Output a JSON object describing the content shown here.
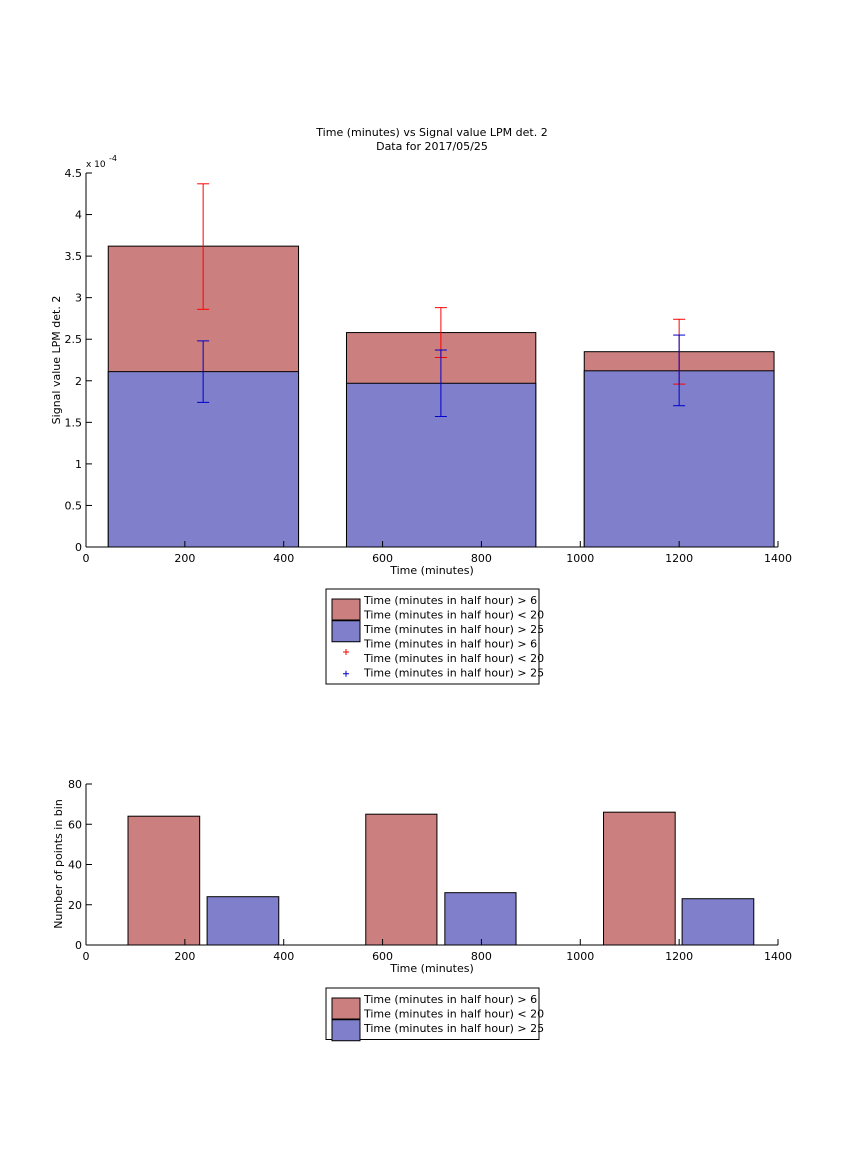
{
  "chart_data": [
    {
      "type": "bar",
      "title": "Time (minutes) vs Signal value LPM det. 2",
      "subtitle": "Data for 2017/05/25",
      "xlabel": "Time (minutes)",
      "ylabel": "Signal value LPM det. 2",
      "y_exponent": "x 10",
      "y_exponent_power": "-4",
      "xlim": [
        0,
        1400
      ],
      "ylim": [
        0,
        4.5
      ],
      "xticks": [
        0,
        200,
        400,
        600,
        800,
        1000,
        1200,
        1400
      ],
      "xtick_labels": [
        "0",
        "200",
        "400",
        "600",
        "800",
        "1000",
        "1200",
        "1400"
      ],
      "yticks": [
        0,
        0.5,
        1,
        1.5,
        2,
        2.5,
        3,
        3.5,
        4,
        4.5
      ],
      "ytick_labels": [
        "0",
        "0.5",
        "1",
        "1.5",
        "2",
        "2.5",
        "3",
        "3.5",
        "4",
        "4.5"
      ],
      "grid": false,
      "legend_position": "below",
      "bar_groups": [
        {
          "x_start": 45,
          "x_end": 430
        },
        {
          "x_start": 527,
          "x_end": 910
        },
        {
          "x_start": 1008,
          "x_end": 1392
        }
      ],
      "series": [
        {
          "name": "Time (minutes in half hour) > 6\nTime (minutes in half hour) < 20",
          "kind": "bar",
          "color": "#cc7f7f",
          "values": [
            3.62,
            2.58,
            2.35
          ]
        },
        {
          "name": "Time (minutes in half hour) > 25",
          "kind": "bar",
          "color": "#7f7fcc",
          "values": [
            2.11,
            1.97,
            2.12
          ]
        },
        {
          "name": "Time (minutes in half hour) > 6\nTime (minutes in half hour) < 20",
          "kind": "errorbar",
          "color": "#ff0000",
          "x": [
            237,
            718,
            1200
          ],
          "y": [
            3.62,
            2.58,
            2.35
          ],
          "lower": [
            2.86,
            2.28,
            1.96
          ],
          "upper": [
            4.37,
            2.88,
            2.74
          ]
        },
        {
          "name": "Time (minutes in half hour) > 25",
          "kind": "errorbar",
          "color": "#0000cc",
          "x": [
            237,
            718,
            1200
          ],
          "y": [
            2.11,
            1.97,
            2.12
          ],
          "lower": [
            1.74,
            1.57,
            1.7
          ],
          "upper": [
            2.48,
            2.37,
            2.55
          ]
        }
      ]
    },
    {
      "type": "bar",
      "xlabel": "Time (minutes)",
      "ylabel": "Number of points in bin",
      "xlim": [
        0,
        1400
      ],
      "ylim": [
        0,
        80
      ],
      "xticks": [
        0,
        200,
        400,
        600,
        800,
        1000,
        1200,
        1400
      ],
      "xtick_labels": [
        "0",
        "200",
        "400",
        "600",
        "800",
        "1000",
        "1200",
        "1400"
      ],
      "yticks": [
        0,
        20,
        40,
        60,
        80
      ],
      "ytick_labels": [
        "0",
        "20",
        "40",
        "60",
        "80"
      ],
      "grid": false,
      "legend_position": "below",
      "series": [
        {
          "name": "Time (minutes in half hour) > 6\nTime (minutes in half hour) < 20",
          "color": "#cc7f7f",
          "x_start": [
            85,
            566,
            1047
          ],
          "x_end": [
            230,
            710,
            1192
          ],
          "values": [
            64,
            65,
            66
          ]
        },
        {
          "name": "Time (minutes in half hour) > 25",
          "color": "#7f7fcc",
          "x_start": [
            245,
            726,
            1206
          ],
          "x_end": [
            390,
            870,
            1351
          ],
          "values": [
            24,
            26,
            23
          ]
        }
      ]
    }
  ],
  "legends": [
    {
      "entries": [
        {
          "kind": "patch",
          "color": "#cc7f7f",
          "lines": [
            "Time (minutes in half hour) > 6",
            "Time (minutes in half hour) < 20"
          ]
        },
        {
          "kind": "patch",
          "color": "#7f7fcc",
          "lines": [
            "Time (minutes in half hour) > 25"
          ]
        },
        {
          "kind": "marker",
          "color": "#ff0000",
          "lines": [
            "Time (minutes in half hour) > 6",
            "Time (minutes in half hour) < 20"
          ]
        },
        {
          "kind": "marker",
          "color": "#0000cc",
          "lines": [
            "Time (minutes in half hour) > 25"
          ]
        }
      ]
    },
    {
      "entries": [
        {
          "kind": "patch",
          "color": "#cc7f7f",
          "lines": [
            "Time (minutes in half hour) > 6",
            "Time (minutes in half hour) < 20"
          ]
        },
        {
          "kind": "patch",
          "color": "#7f7fcc",
          "lines": [
            "Time (minutes in half hour) > 25"
          ]
        }
      ]
    }
  ]
}
